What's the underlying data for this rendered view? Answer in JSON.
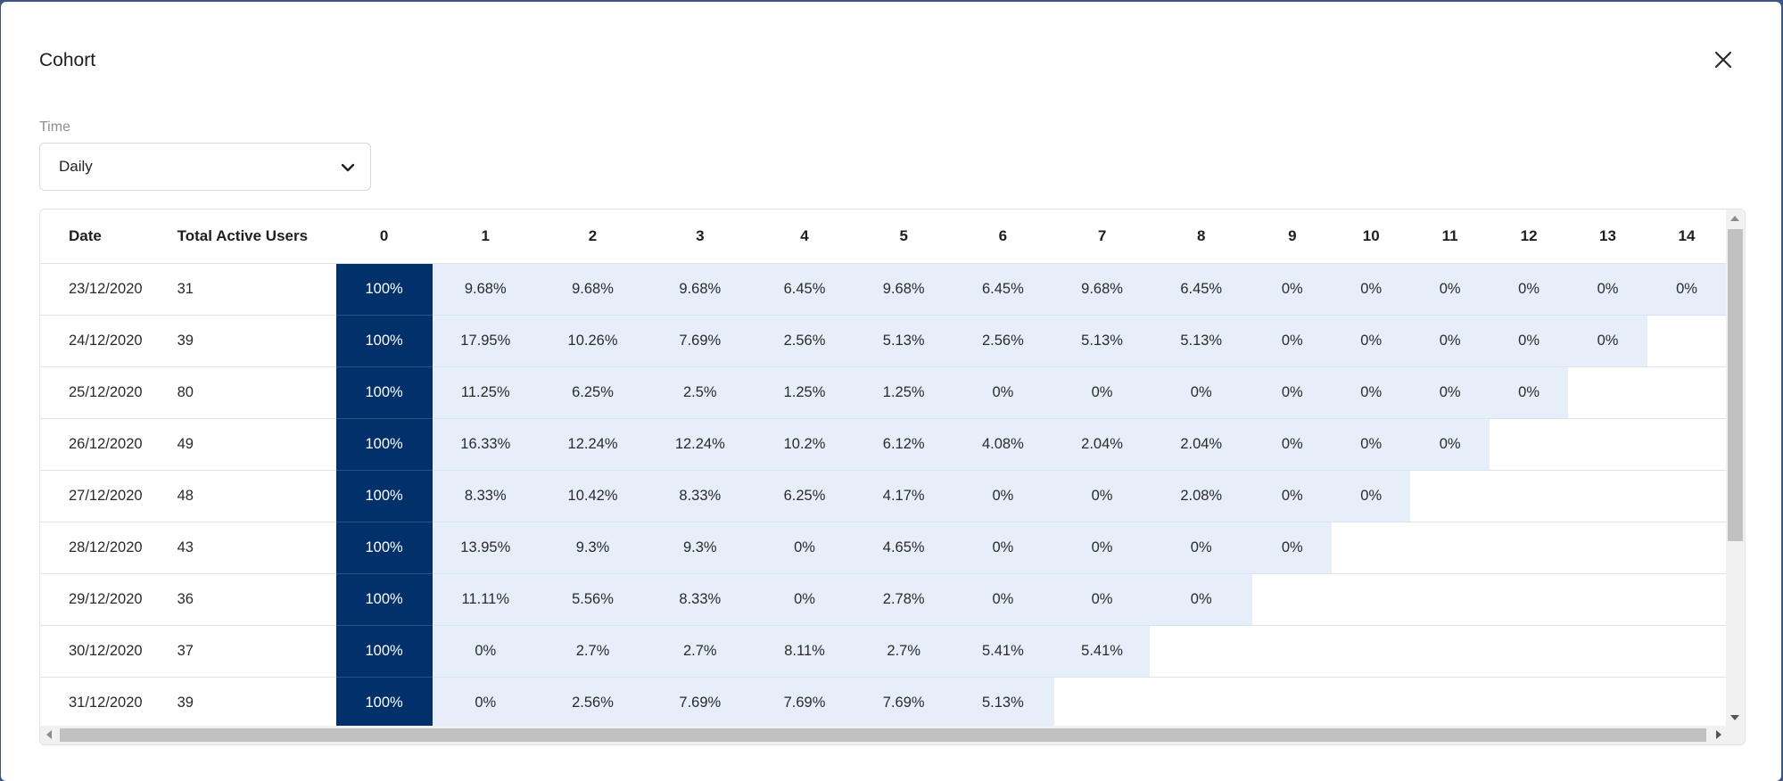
{
  "modal": {
    "title": "Cohort"
  },
  "filter": {
    "label": "Time",
    "selected": "Daily"
  },
  "table": {
    "headers": {
      "date": "Date",
      "total": "Total Active Users",
      "periods": [
        "0",
        "1",
        "2",
        "3",
        "4",
        "5",
        "6",
        "7",
        "8",
        "9",
        "10",
        "11",
        "12",
        "13",
        "14"
      ]
    },
    "rows": [
      {
        "date": "23/12/2020",
        "users": "31",
        "values": [
          "100%",
          "9.68%",
          "9.68%",
          "9.68%",
          "6.45%",
          "9.68%",
          "6.45%",
          "9.68%",
          "6.45%",
          "0%",
          "0%",
          "0%",
          "0%",
          "0%",
          "0%"
        ]
      },
      {
        "date": "24/12/2020",
        "users": "39",
        "values": [
          "100%",
          "17.95%",
          "10.26%",
          "7.69%",
          "2.56%",
          "5.13%",
          "2.56%",
          "5.13%",
          "5.13%",
          "0%",
          "0%",
          "0%",
          "0%",
          "0%"
        ]
      },
      {
        "date": "25/12/2020",
        "users": "80",
        "values": [
          "100%",
          "11.25%",
          "6.25%",
          "2.5%",
          "1.25%",
          "1.25%",
          "0%",
          "0%",
          "0%",
          "0%",
          "0%",
          "0%",
          "0%"
        ]
      },
      {
        "date": "26/12/2020",
        "users": "49",
        "values": [
          "100%",
          "16.33%",
          "12.24%",
          "12.24%",
          "10.2%",
          "6.12%",
          "4.08%",
          "2.04%",
          "2.04%",
          "0%",
          "0%",
          "0%"
        ]
      },
      {
        "date": "27/12/2020",
        "users": "48",
        "values": [
          "100%",
          "8.33%",
          "10.42%",
          "8.33%",
          "6.25%",
          "4.17%",
          "0%",
          "0%",
          "2.08%",
          "0%",
          "0%"
        ]
      },
      {
        "date": "28/12/2020",
        "users": "43",
        "values": [
          "100%",
          "13.95%",
          "9.3%",
          "9.3%",
          "0%",
          "4.65%",
          "0%",
          "0%",
          "0%",
          "0%"
        ]
      },
      {
        "date": "29/12/2020",
        "users": "36",
        "values": [
          "100%",
          "11.11%",
          "5.56%",
          "8.33%",
          "0%",
          "2.78%",
          "0%",
          "0%",
          "0%"
        ]
      },
      {
        "date": "30/12/2020",
        "users": "37",
        "values": [
          "100%",
          "0%",
          "2.7%",
          "2.7%",
          "8.11%",
          "2.7%",
          "5.41%",
          "5.41%"
        ]
      },
      {
        "date": "31/12/2020",
        "users": "39",
        "values": [
          "100%",
          "0%",
          "2.56%",
          "7.69%",
          "7.69%",
          "7.69%",
          "5.13%"
        ]
      }
    ]
  },
  "icons": {
    "close": "close-icon",
    "chevron": "chevron-down-icon"
  },
  "colors": {
    "cohort_zero": "#02306b",
    "cohort_pct": "#e6eff9"
  }
}
